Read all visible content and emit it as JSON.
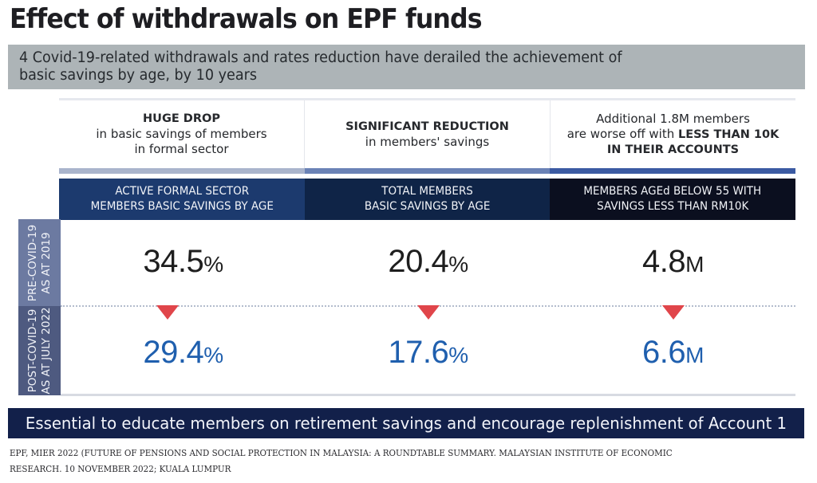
{
  "title": "Effect of withdrawals on EPF funds",
  "subtitle": {
    "line1": "4 Covid-19-related withdrawals and rates reduction have derailed the achievement of",
    "line2": "basic savings by age, by 10 years"
  },
  "columns": [
    {
      "caption_strong": "HUGE DROP",
      "caption_lines": [
        "in basic savings of members",
        "in formal sector"
      ],
      "header_lines": [
        "ACTIVE FORMAL SECTOR",
        "MEMBERS BASIC SAVINGS BY AGE"
      ],
      "pre_value": "34.5",
      "pre_unit": "%",
      "post_value": "29.4",
      "post_unit": "%",
      "bar_color": "#a9b4cc",
      "header_color": "#1c3a6e"
    },
    {
      "caption_strong": "SIGNIFICANT REDUCTION",
      "caption_lines": [
        "in members' savings"
      ],
      "header_lines": [
        "TOTAL MEMBERS",
        "BASIC SAVINGS BY AGE"
      ],
      "pre_value": "20.4",
      "pre_unit": "%",
      "post_value": "17.6",
      "post_unit": "%",
      "bar_color": "#6a82b6",
      "header_color": "#0f2447"
    },
    {
      "caption_intro": "Additional 1.8M members",
      "caption_mixed": "are worse off with",
      "caption_mixed_strong": "LESS THAN 10K",
      "caption_strong_last": "IN THEIR ACCOUNTS",
      "header_lines": [
        "MEMBERS AGEd BELOW 55 WITH",
        "SAVINGS LESS THAN RM10K"
      ],
      "pre_value": "4.8",
      "pre_unit": "M",
      "post_value": "6.6",
      "post_unit": "M",
      "bar_color": "#3b5aa2",
      "header_color": "#0b0f1f"
    }
  ],
  "rows": {
    "pre": {
      "line1": "PRE-COVID-19",
      "line2": "AS AT 2019"
    },
    "post": {
      "line1": "POST-COVID-19",
      "line2": "AS AT JULY 2022"
    }
  },
  "banner": "Essential to educate members on retirement savings and encourage replenishment of Account 1",
  "source": {
    "line1": "EPF, MIER 2022 (FUTURE OF PENSIONS AND SOCIAL PROTECTION IN MALAYSIA: A ROUNDTABLE SUMMARY. MALAYSIAN INSTITUTE OF ECONOMIC",
    "line2": "RESEARCH. 10 NOVEMBER 2022; KUALA LUMPUR"
  },
  "colors": {
    "decrease_arrow": "#e0454a",
    "post_value": "#1f5fae",
    "banner_bg": "#12204a",
    "subtitle_bg": "#adb4b7"
  }
}
